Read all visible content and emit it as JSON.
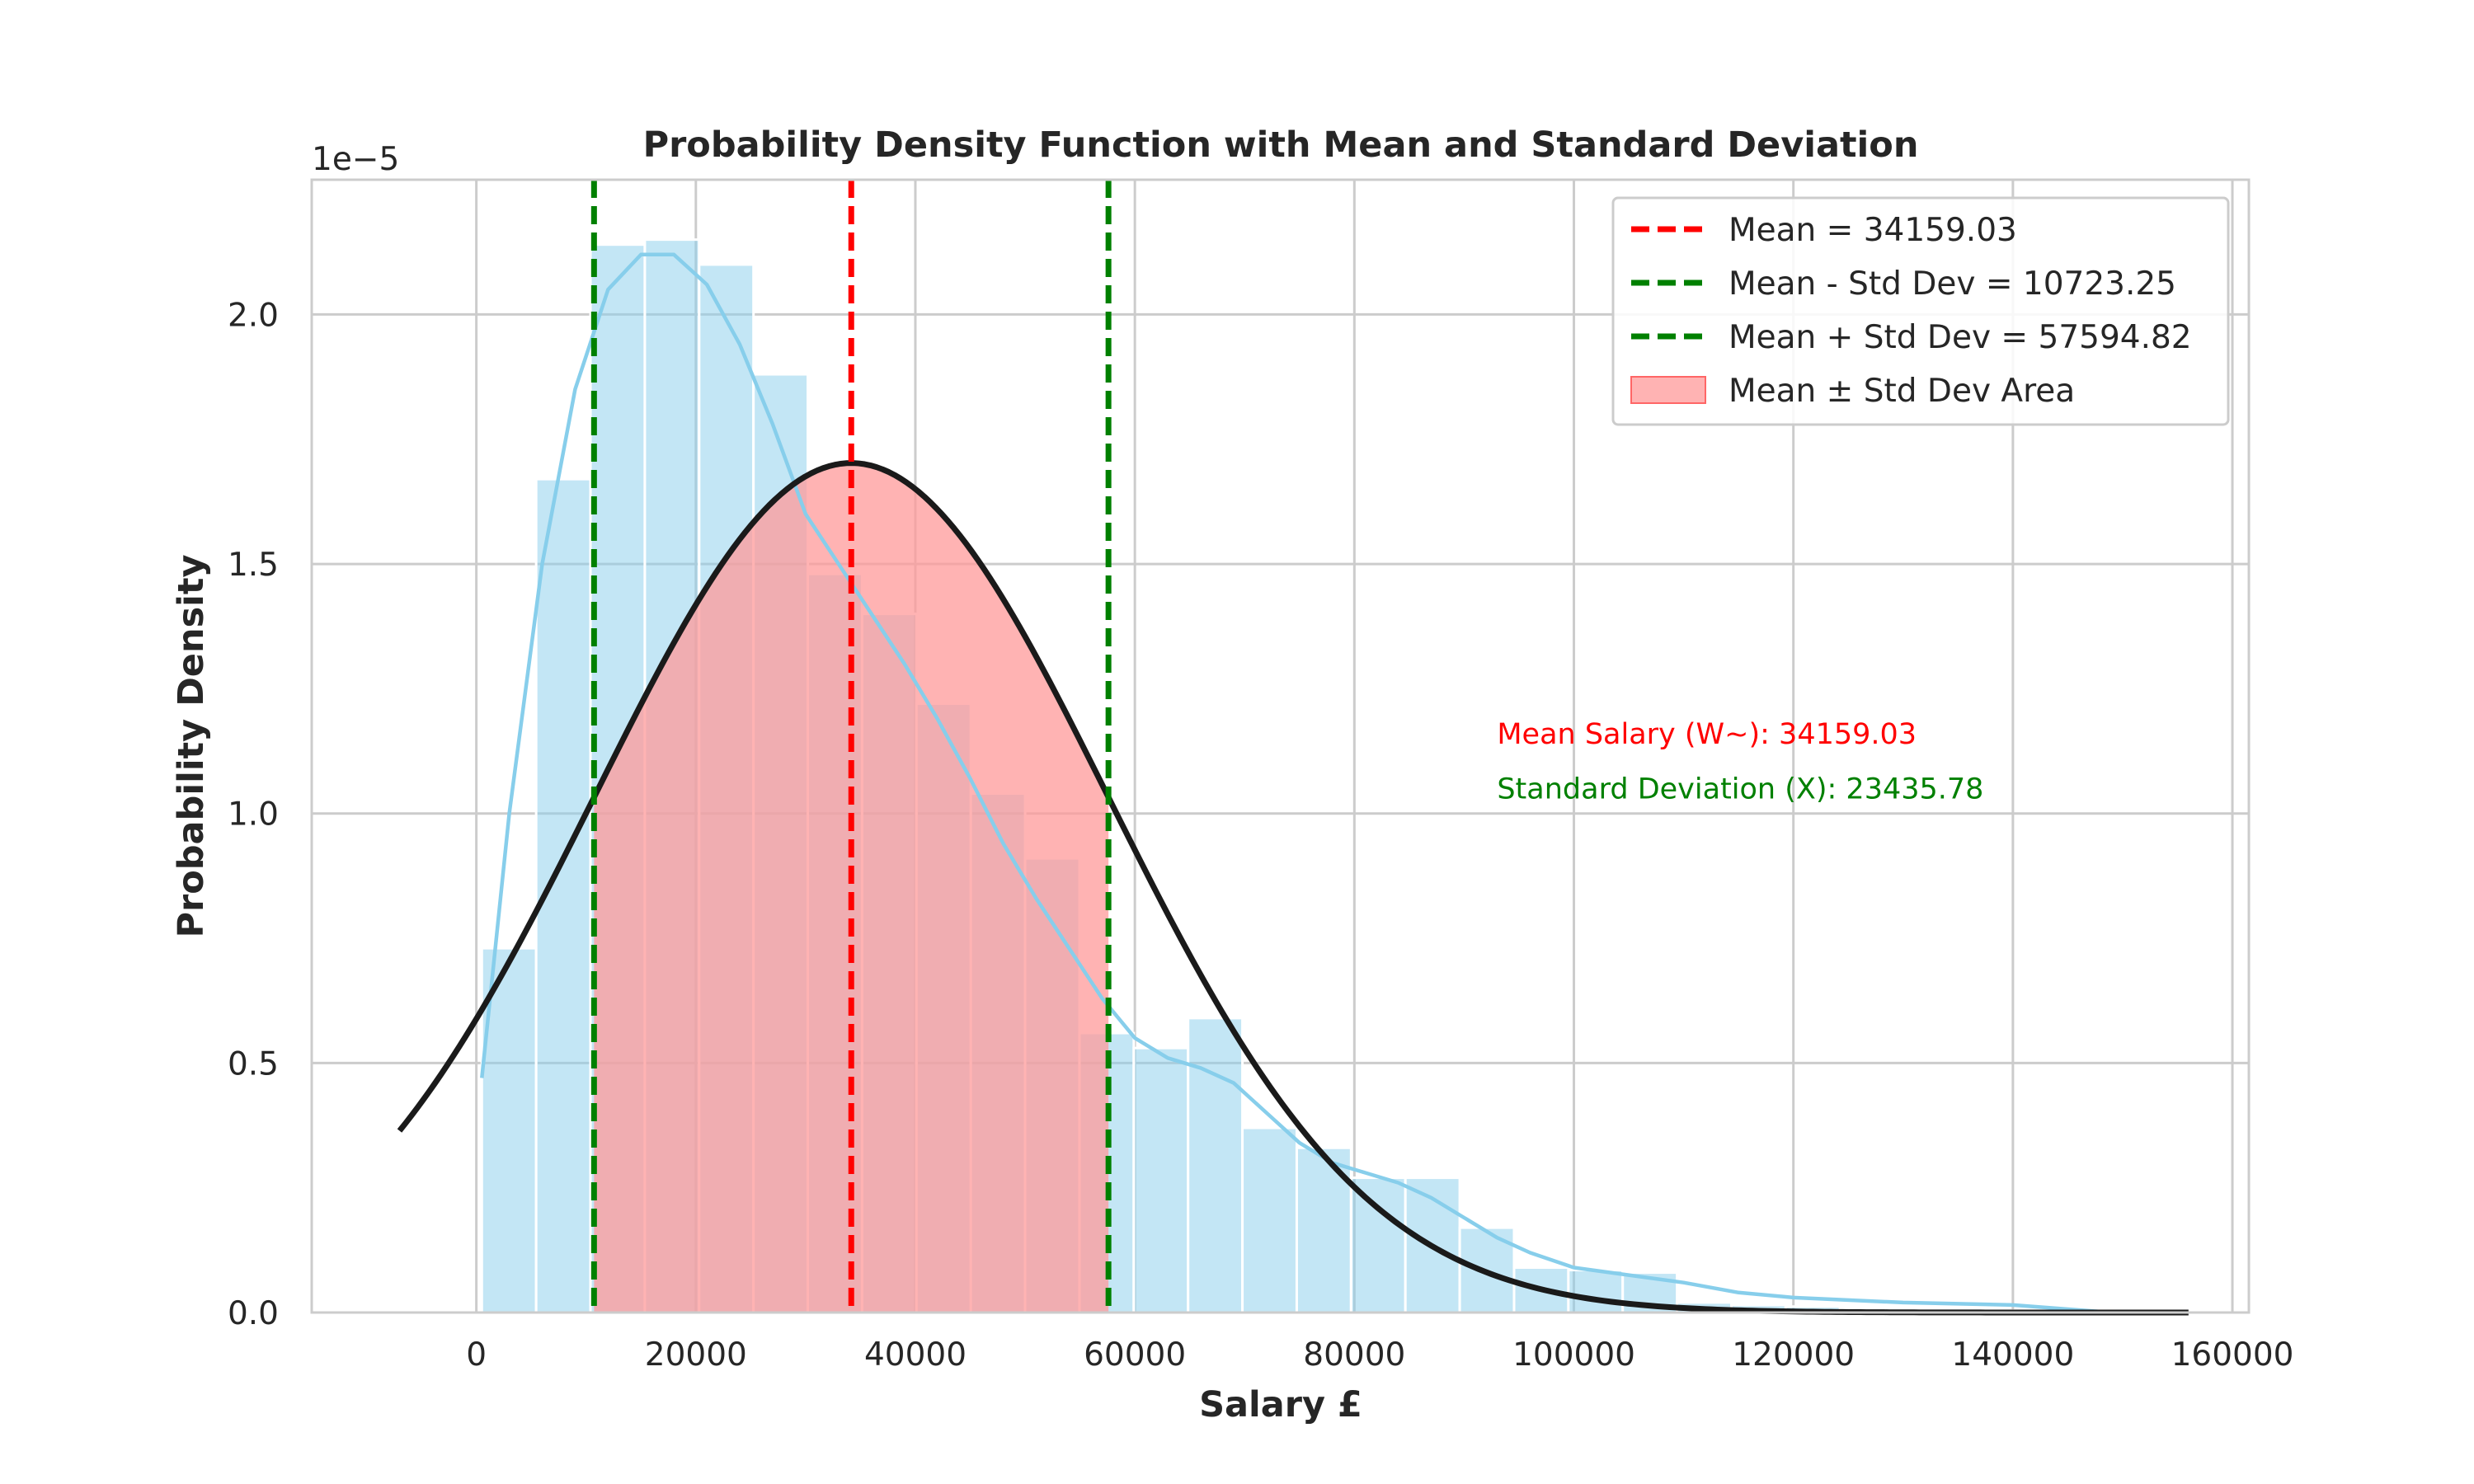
{
  "chart_data": {
    "type": "histogram",
    "title": "Probability Density Function with Mean and Standard Deviation",
    "xlabel": "Salary £",
    "ylabel": "Probability Density",
    "y_multiplier_label": "1e−5",
    "y_scale_exponent": -5,
    "xlim": [
      -15000,
      161500
    ],
    "ylim": [
      0,
      2.27
    ],
    "x_ticks": [
      0,
      20000,
      40000,
      60000,
      80000,
      100000,
      120000,
      140000,
      160000
    ],
    "y_ticks": [
      0.0,
      0.5,
      1.0,
      1.5,
      2.0
    ],
    "x_tick_labels": [
      "0",
      "20000",
      "40000",
      "60000",
      "80000",
      "100000",
      "120000",
      "140000",
      "160000"
    ],
    "y_tick_labels": [
      "0.0",
      "0.5",
      "1.0",
      "1.5",
      "2.0"
    ],
    "grid": true,
    "legend_position": "top-right",
    "histogram": {
      "bin_start": 500,
      "bin_width": 4950,
      "densities": [
        0.73,
        1.67,
        2.14,
        2.15,
        2.1,
        1.88,
        1.48,
        1.4,
        1.22,
        1.04,
        0.91,
        0.56,
        0.53,
        0.59,
        0.37,
        0.33,
        0.27,
        0.27,
        0.17,
        0.09,
        0.085,
        0.08,
        0.02,
        0.015,
        0.012,
        0.008,
        0.006,
        0.006,
        0.004,
        0.003,
        0.002
      ],
      "color": "#87ceeb"
    },
    "kde_curve": {
      "x": [
        500,
        3000,
        6000,
        9000,
        12000,
        15000,
        18000,
        21000,
        24000,
        27000,
        30000,
        33000,
        36000,
        39000,
        42000,
        45000,
        48000,
        51000,
        54000,
        57000,
        60000,
        63000,
        66000,
        69000,
        72000,
        75000,
        78000,
        81000,
        84000,
        87000,
        90000,
        93000,
        96000,
        100000,
        105000,
        110000,
        115000,
        120000,
        130000,
        140000,
        149000
      ],
      "y": [
        0.47,
        1.0,
        1.5,
        1.85,
        2.05,
        2.12,
        2.12,
        2.06,
        1.94,
        1.78,
        1.6,
        1.5,
        1.4,
        1.3,
        1.19,
        1.07,
        0.94,
        0.83,
        0.73,
        0.63,
        0.55,
        0.51,
        0.49,
        0.46,
        0.4,
        0.34,
        0.3,
        0.28,
        0.26,
        0.23,
        0.19,
        0.15,
        0.12,
        0.09,
        0.075,
        0.06,
        0.04,
        0.03,
        0.02,
        0.015,
        0.0
      ],
      "color": "#87ceeb"
    },
    "normal_curve": {
      "mean": 34159.03,
      "std": 23435.78,
      "x_range": [
        -7000,
        156000
      ],
      "color": "#1a1a1a"
    },
    "mean_line": {
      "value": 34159.03,
      "color": "#ff0000"
    },
    "std_lines": [
      {
        "value": 10723.25,
        "color": "#008000"
      },
      {
        "value": 57594.82,
        "color": "#008000"
      }
    ],
    "std_area": {
      "from": 10723.25,
      "to": 57594.82,
      "color": "#ff9999"
    },
    "legend": [
      {
        "label": "Mean = 34159.03",
        "kind": "dashed",
        "color": "#ff0000"
      },
      {
        "label": "Mean - Std Dev = 10723.25",
        "kind": "dashed",
        "color": "#008000"
      },
      {
        "label": "Mean + Std Dev = 57594.82",
        "kind": "dashed",
        "color": "#008000"
      },
      {
        "label": "Mean ± Std Dev Area",
        "kind": "patch",
        "color": "#ff9999"
      }
    ],
    "annotations": [
      {
        "text": "Mean Salary (W~): 34159.03",
        "x": 93000,
        "y": 1.14,
        "color": "#ff0000"
      },
      {
        "text": "Standard Deviation (X): 23435.78",
        "x": 93000,
        "y": 1.03,
        "color": "#008000"
      }
    ]
  }
}
